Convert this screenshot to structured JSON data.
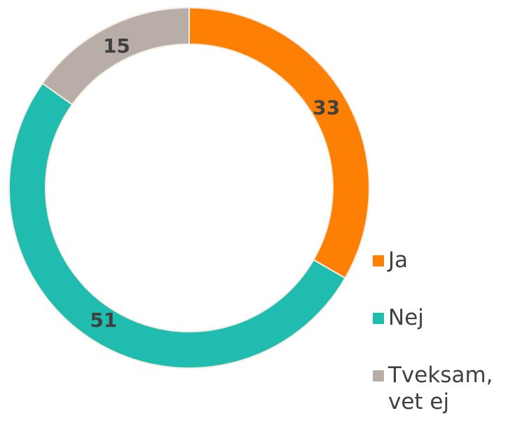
{
  "chart_data": {
    "type": "donut",
    "categories": [
      "Ja",
      "Nej",
      "Tveksam, vet ej"
    ],
    "values": [
      33,
      51,
      15
    ],
    "colors": [
      "#fd7f04",
      "#21bcb0",
      "#b9aea7"
    ],
    "legend": "right"
  }
}
